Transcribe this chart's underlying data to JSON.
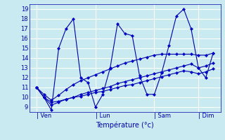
{
  "background_color": "#c8eaf0",
  "grid_color": "#ffffff",
  "line_color": "#0000aa",
  "marker_color": "#0000cc",
  "xlabel": "Température (°c)",
  "ylabel_ticks": [
    9,
    10,
    11,
    12,
    13,
    14,
    15,
    16,
    17,
    18,
    19
  ],
  "xtick_labels": [
    "| Ven",
    "| Lun",
    "| Sam",
    "| Dim"
  ],
  "xtick_positions": [
    0,
    8,
    16,
    22
  ],
  "xlim": [
    -1,
    25
  ],
  "ylim": [
    8.5,
    19.5
  ],
  "series1": [
    11.0,
    10.0,
    8.7,
    15.0,
    17.0,
    18.0,
    12.0,
    11.5,
    9.0,
    10.3,
    13.0,
    17.5,
    16.5,
    16.3,
    12.2,
    10.3,
    10.3,
    12.5,
    15.3,
    18.3,
    19.0,
    17.0,
    13.0,
    12.0,
    14.5
  ],
  "series2": [
    11.0,
    10.3,
    9.7,
    10.2,
    10.8,
    11.3,
    11.7,
    12.0,
    12.3,
    12.6,
    12.9,
    13.2,
    13.5,
    13.7,
    13.9,
    14.1,
    14.3,
    14.4,
    14.4,
    14.4,
    14.4,
    14.4,
    14.3,
    14.3,
    14.5
  ],
  "series3": [
    11.0,
    10.0,
    9.2,
    9.5,
    9.8,
    10.0,
    10.3,
    10.5,
    10.7,
    10.9,
    11.1,
    11.4,
    11.6,
    11.8,
    12.0,
    12.2,
    12.4,
    12.6,
    12.8,
    13.0,
    13.2,
    13.4,
    13.0,
    13.2,
    13.5
  ],
  "series4": [
    11.0,
    10.0,
    9.5,
    9.6,
    9.8,
    10.0,
    10.1,
    10.3,
    10.5,
    10.6,
    10.8,
    11.0,
    11.2,
    11.3,
    11.5,
    11.7,
    11.9,
    12.1,
    12.3,
    12.5,
    12.7,
    12.6,
    12.4,
    12.6,
    12.9
  ]
}
